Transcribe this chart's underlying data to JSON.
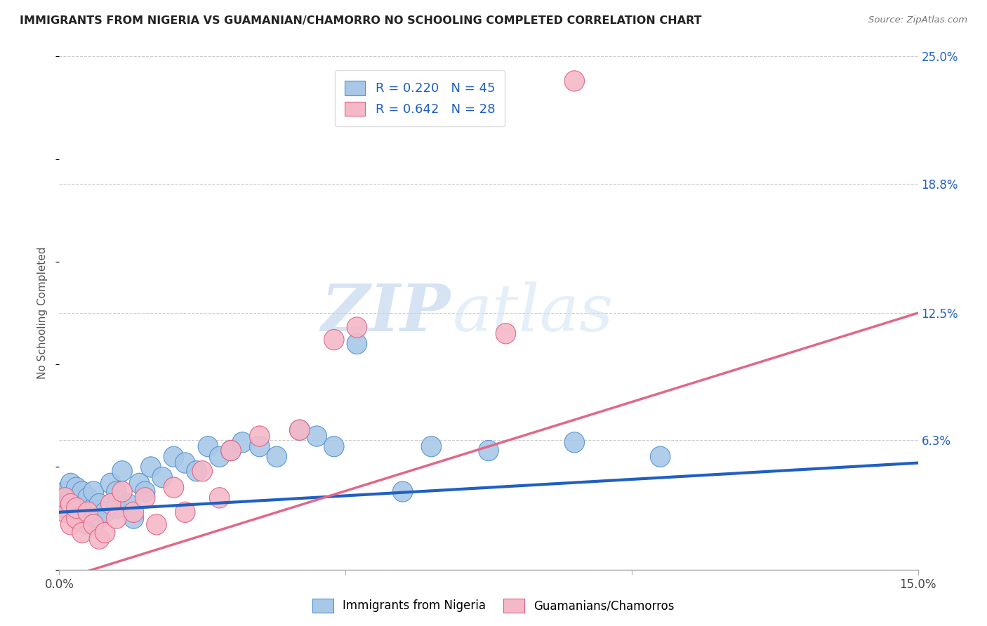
{
  "title": "IMMIGRANTS FROM NIGERIA VS GUAMANIAN/CHAMORRO NO SCHOOLING COMPLETED CORRELATION CHART",
  "source": "Source: ZipAtlas.com",
  "ylabel": "No Schooling Completed",
  "xlim": [
    0.0,
    0.15
  ],
  "ylim": [
    0.0,
    0.25
  ],
  "xtick_positions": [
    0.0,
    0.05,
    0.1,
    0.15
  ],
  "xtick_labels": [
    "0.0%",
    "",
    "",
    "15.0%"
  ],
  "ytick_values": [
    0.0,
    0.063,
    0.125,
    0.188,
    0.25
  ],
  "ytick_labels": [
    "",
    "6.3%",
    "12.5%",
    "18.8%",
    "25.0%"
  ],
  "blue_R": "R = 0.220",
  "blue_N": "N = 45",
  "pink_R": "R = 0.642",
  "pink_N": "N = 28",
  "blue_fill_color": "#A8C8E8",
  "pink_fill_color": "#F5B8C8",
  "blue_edge_color": "#5090D0",
  "pink_edge_color": "#E06080",
  "blue_line_color": "#2060C0",
  "pink_line_color": "#E06888",
  "legend_text_color": "#2060C0",
  "legend_label_blue": "Immigrants from Nigeria",
  "legend_label_pink": "Guamanians/Chamorros",
  "watermark_zip": "ZIP",
  "watermark_atlas": "atlas",
  "background_color": "#FFFFFF",
  "grid_color": "#CCCCCC",
  "blue_scatter_x": [
    0.001,
    0.001,
    0.002,
    0.002,
    0.002,
    0.003,
    0.003,
    0.003,
    0.004,
    0.004,
    0.005,
    0.005,
    0.006,
    0.006,
    0.007,
    0.007,
    0.008,
    0.009,
    0.01,
    0.01,
    0.011,
    0.012,
    0.013,
    0.014,
    0.015,
    0.016,
    0.018,
    0.02,
    0.022,
    0.024,
    0.026,
    0.028,
    0.03,
    0.032,
    0.035,
    0.038,
    0.042,
    0.045,
    0.048,
    0.052,
    0.06,
    0.065,
    0.075,
    0.09,
    0.105
  ],
  "blue_scatter_y": [
    0.03,
    0.038,
    0.028,
    0.035,
    0.042,
    0.025,
    0.032,
    0.04,
    0.03,
    0.038,
    0.022,
    0.035,
    0.03,
    0.038,
    0.025,
    0.032,
    0.028,
    0.042,
    0.03,
    0.038,
    0.048,
    0.032,
    0.025,
    0.042,
    0.038,
    0.05,
    0.045,
    0.055,
    0.052,
    0.048,
    0.06,
    0.055,
    0.058,
    0.062,
    0.06,
    0.055,
    0.068,
    0.065,
    0.06,
    0.11,
    0.038,
    0.06,
    0.058,
    0.062,
    0.055
  ],
  "pink_scatter_x": [
    0.001,
    0.001,
    0.002,
    0.002,
    0.003,
    0.003,
    0.004,
    0.005,
    0.006,
    0.007,
    0.008,
    0.009,
    0.01,
    0.011,
    0.013,
    0.015,
    0.017,
    0.02,
    0.022,
    0.025,
    0.028,
    0.03,
    0.035,
    0.042,
    0.048,
    0.052,
    0.078,
    0.09
  ],
  "pink_scatter_y": [
    0.028,
    0.035,
    0.022,
    0.032,
    0.025,
    0.03,
    0.018,
    0.028,
    0.022,
    0.015,
    0.018,
    0.032,
    0.025,
    0.038,
    0.028,
    0.035,
    0.022,
    0.04,
    0.028,
    0.048,
    0.035,
    0.058,
    0.065,
    0.068,
    0.112,
    0.118,
    0.115,
    0.238
  ],
  "blue_line_x0": 0.0,
  "blue_line_y0": 0.028,
  "blue_line_x1": 0.15,
  "blue_line_y1": 0.052,
  "pink_line_x0": 0.0,
  "pink_line_y0": -0.005,
  "pink_line_x1": 0.15,
  "pink_line_y1": 0.125
}
